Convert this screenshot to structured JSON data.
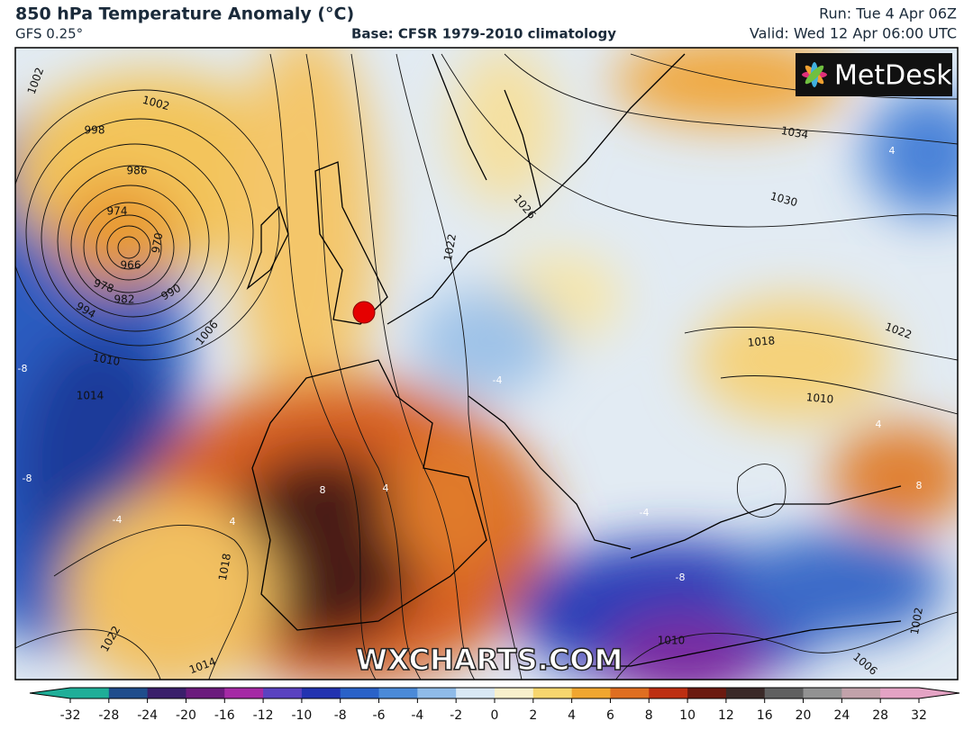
{
  "header": {
    "title": "850 hPa Temperature Anomaly (°C)",
    "model": "GFS 0.25°",
    "base": "Base: CFSR 1979-2010 climatology",
    "run": "Run: Tue 4 Apr 06Z",
    "valid": "Valid: Wed 12 Apr 06:00 UTC"
  },
  "logo": "MetDesk",
  "watermark": "WXCHARTS.COM",
  "map": {
    "pressure_labels": [
      "1002",
      "1002",
      "998",
      "986",
      "974",
      "970",
      "966",
      "978",
      "982",
      "990",
      "994",
      "1006",
      "1010",
      "1014",
      "1034",
      "1030",
      "1022",
      "1026",
      "1022",
      "1018",
      "1010",
      "1018",
      "1022",
      "1014",
      "1010",
      "1006",
      "1002"
    ],
    "temperature_labels": [
      "-8",
      "-8",
      "-4",
      "8",
      "4",
      "4",
      "4",
      "8",
      "-4",
      "-8",
      "-4",
      "4"
    ]
  },
  "colorbar": {
    "ticks": [
      -32,
      -28,
      -24,
      -20,
      -16,
      -12,
      -10,
      -8,
      -6,
      -4,
      -2,
      0,
      2,
      4,
      6,
      8,
      10,
      12,
      16,
      20,
      24,
      28,
      32
    ],
    "colors": [
      "#1fae98",
      "#1f4d8c",
      "#3a1f6b",
      "#6b1b7d",
      "#a52aa5",
      "#5a42c0",
      "#2233b0",
      "#2a62c8",
      "#4b8ad8",
      "#8fbbe8",
      "#d9e8f4",
      "#f8f0cc",
      "#f7d66e",
      "#f0a630",
      "#df6e20",
      "#bd2f12",
      "#6b1a10",
      "#3b2a28",
      "#606060",
      "#929292",
      "#c2a2aa",
      "#e4a3c4"
    ]
  }
}
